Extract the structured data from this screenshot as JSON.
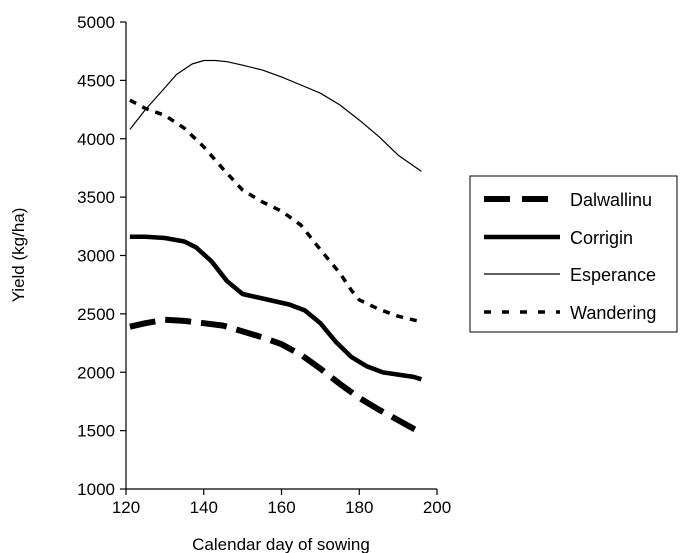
{
  "chart_data": {
    "type": "line",
    "title": "",
    "xlabel": "Calendar day of sowing",
    "ylabel": "Yield (kg/ha)",
    "xlim": [
      120,
      200
    ],
    "ylim": [
      1000,
      5000
    ],
    "xticks": [
      120,
      140,
      160,
      180,
      200
    ],
    "yticks": [
      1000,
      1500,
      2000,
      2500,
      3000,
      3500,
      4000,
      4500,
      5000
    ],
    "grid": false,
    "legend_position": "right",
    "series": [
      {
        "name": "Dalwallinu",
        "style": "long-dash-thick",
        "color": "#000000",
        "x": [
          121,
          125,
          130,
          135,
          140,
          145,
          150,
          155,
          160,
          165,
          170,
          175,
          180,
          185,
          190,
          196
        ],
        "y": [
          2390,
          2420,
          2450,
          2440,
          2420,
          2400,
          2350,
          2300,
          2240,
          2150,
          2030,
          1900,
          1780,
          1680,
          1590,
          1480
        ]
      },
      {
        "name": "Corrigin",
        "style": "solid-thick",
        "color": "#000000",
        "x": [
          121,
          125,
          130,
          135,
          138,
          142,
          146,
          150,
          154,
          158,
          162,
          166,
          170,
          174,
          178,
          182,
          186,
          190,
          194,
          196
        ],
        "y": [
          3160,
          3160,
          3150,
          3120,
          3070,
          2950,
          2780,
          2670,
          2640,
          2610,
          2580,
          2530,
          2420,
          2260,
          2130,
          2050,
          2000,
          1980,
          1960,
          1940
        ]
      },
      {
        "name": "Esperance",
        "style": "solid-thin",
        "color": "#000000",
        "x": [
          121,
          125,
          129,
          133,
          137,
          140,
          143,
          146,
          150,
          155,
          160,
          165,
          170,
          175,
          180,
          185,
          190,
          196
        ],
        "y": [
          4080,
          4250,
          4400,
          4550,
          4640,
          4670,
          4670,
          4660,
          4630,
          4590,
          4530,
          4460,
          4390,
          4290,
          4160,
          4020,
          3860,
          3720
        ]
      },
      {
        "name": "Wandering",
        "style": "short-dash",
        "color": "#000000",
        "x": [
          121,
          125,
          130,
          135,
          140,
          145,
          150,
          155,
          160,
          165,
          170,
          175,
          178,
          180,
          185,
          190,
          195
        ],
        "y": [
          4330,
          4260,
          4200,
          4090,
          3930,
          3740,
          3560,
          3460,
          3380,
          3260,
          3050,
          2850,
          2700,
          2620,
          2540,
          2480,
          2440
        ]
      }
    ]
  }
}
